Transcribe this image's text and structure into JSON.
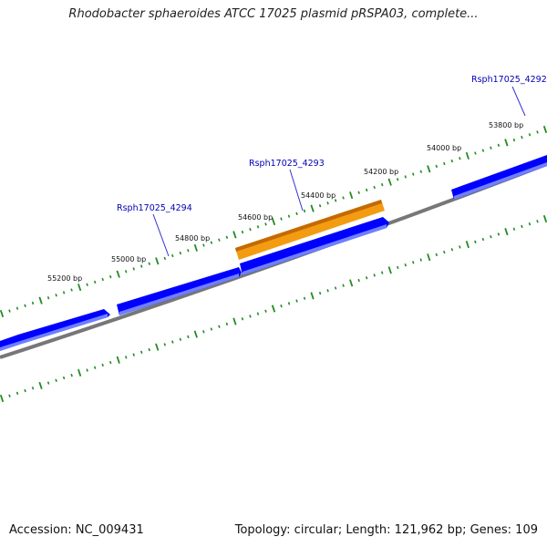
{
  "title": "Rhodobacter sphaeroides ATCC 17025 plasmid pRSPA03, complete...",
  "footer": {
    "accession": "Accession: NC_009431",
    "summary": "Topology: circular; Length: 121,962 bp; Genes: 109"
  },
  "map": {
    "backbone_color": "#777777",
    "tick_color": "#228b22",
    "forward_gene_color": "#0000ff",
    "reverse_gene_color": "#0000ff",
    "highlight_gene_color": "#f39c12",
    "bp_labels": [
      "53800 bp",
      "54000 bp",
      "54200 bp",
      "54400 bp",
      "54600 bp",
      "54800 bp",
      "55000 bp",
      "55200 bp"
    ],
    "genes": [
      {
        "label": "Rsph17025_4292",
        "strand": "forward",
        "highlighted": false
      },
      {
        "label": "Rsph17025_4293",
        "strand": "reverse",
        "highlighted": true
      },
      {
        "label": "Rsph17025_4294",
        "strand": "forward",
        "highlighted": false
      }
    ]
  }
}
